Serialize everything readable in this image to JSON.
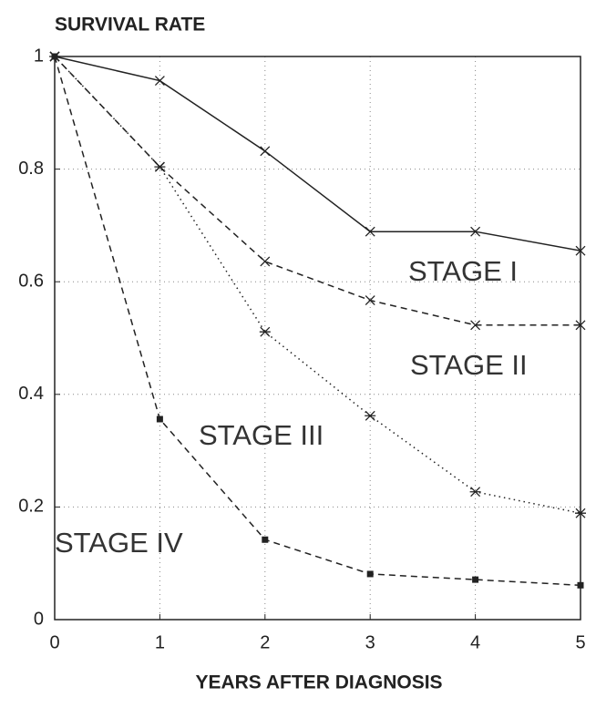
{
  "chart_data": {
    "type": "line",
    "title": "SURVIVAL RATE",
    "x_label": "YEARS AFTER DIAGNOSIS",
    "x": [
      0,
      1,
      2,
      3,
      4,
      5
    ],
    "series": [
      {
        "name": "STAGE I",
        "color": "#222222",
        "dash": "solid",
        "marker": "x",
        "values": [
          1,
          0.957,
          0.832,
          0.689,
          0.689,
          0.655
        ]
      },
      {
        "name": "STAGE II",
        "color": "#222222",
        "dash": "dashed",
        "marker": "x",
        "values": [
          1,
          0.804,
          0.636,
          0.567,
          0.523,
          0.523
        ]
      },
      {
        "name": "STAGE III",
        "color": "#222222",
        "dash": "dotted",
        "marker": "star",
        "values": [
          1,
          0.804,
          0.511,
          0.362,
          0.227,
          0.189
        ]
      },
      {
        "name": "STAGE IV",
        "color": "#222222",
        "dash": "dashed",
        "marker": "square",
        "values": [
          1,
          0.356,
          0.142,
          0.081,
          0.071,
          0.061
        ]
      }
    ],
    "xlim": [
      0,
      5
    ],
    "ylim": [
      0,
      1
    ],
    "xticks": [
      0,
      1,
      2,
      3,
      4,
      5
    ],
    "yticks": [
      0,
      0.2,
      0.4,
      0.6,
      0.8,
      1
    ],
    "grid": true
  }
}
